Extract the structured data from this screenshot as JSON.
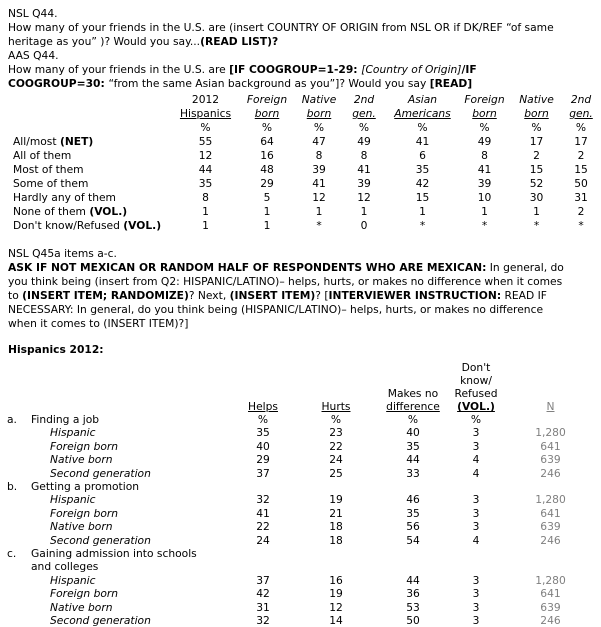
{
  "q44": {
    "lines": [
      [
        {
          "t": "NSL Q44."
        }
      ],
      [
        {
          "t": "How many of your friends in the U.S. are (insert COUNTRY OF ORIGIN from NSL OR if DK/REF “of same"
        }
      ],
      [
        {
          "t": "heritage as you” )? Would you say..."
        },
        {
          "t": "(READ LIST)?",
          "b": true
        }
      ],
      [
        {
          "t": "AAS Q44."
        }
      ],
      [
        {
          "t": "How many of your friends in the U.S. are "
        },
        {
          "t": "[IF COOGROUP=1-29: ",
          "b": true
        },
        {
          "t": "[Country of Origin]",
          "i": true
        },
        {
          "t": "/IF",
          "b": true
        }
      ],
      [
        {
          "t": "COOGROUP=30: ",
          "b": true
        },
        {
          "t": "“from the same Asian background as you”]? Would you say "
        },
        {
          "t": "[READ]",
          "b": true
        }
      ]
    ]
  },
  "table1": {
    "columns": [
      {
        "l1": "2012",
        "l2": "Hispanics"
      },
      {
        "l1": "Foreign",
        "l2": "born"
      },
      {
        "l1": "Native",
        "l2": "born"
      },
      {
        "l1": "2nd",
        "l2": "gen."
      },
      {
        "l1": "Asian",
        "l2": "Americans"
      },
      {
        "l1": "Foreign",
        "l2": "born"
      },
      {
        "l1": "Native",
        "l2": "born"
      },
      {
        "l1": "2nd",
        "l2": "gen."
      }
    ],
    "rows": [
      {
        "label": "",
        "label_bold": "",
        "values": [
          "%",
          "%",
          "%",
          "%",
          "%",
          "%",
          "%",
          "%"
        ]
      },
      {
        "label": "All/most ",
        "label_bold": "(NET)",
        "values": [
          "55",
          "64",
          "47",
          "49",
          "41",
          "49",
          "17",
          "17"
        ]
      },
      {
        "label": "All of them",
        "label_bold": "",
        "values": [
          "12",
          "16",
          "8",
          "8",
          "6",
          "8",
          "2",
          "2"
        ]
      },
      {
        "label": "Most of them",
        "label_bold": "",
        "values": [
          "44",
          "48",
          "39",
          "41",
          "35",
          "41",
          "15",
          "15"
        ]
      },
      {
        "label": "Some of them",
        "label_bold": "",
        "values": [
          "35",
          "29",
          "41",
          "39",
          "42",
          "39",
          "52",
          "50"
        ]
      },
      {
        "label": "Hardly any of them",
        "label_bold": "",
        "values": [
          "8",
          "5",
          "12",
          "12",
          "15",
          "10",
          "30",
          "31"
        ]
      },
      {
        "label": "None of them ",
        "label_bold": "(VOL.)",
        "values": [
          "1",
          "1",
          "1",
          "1",
          "1",
          "1",
          "1",
          "2"
        ]
      },
      {
        "label": "Don't know/Refused ",
        "label_bold": "(VOL.)",
        "values": [
          "1",
          "1",
          "*",
          "0",
          "*",
          "*",
          "*",
          "*"
        ]
      }
    ]
  },
  "q45": {
    "lines": [
      [
        {
          "t": "NSL Q45a items a-c."
        }
      ],
      [
        {
          "t": "ASK IF NOT MEXICAN OR RANDOM HALF OF RESPONDENTS WHO ARE MEXICAN:",
          "b": true
        },
        {
          "t": " In general, do"
        }
      ],
      [
        {
          "t": "you think being (insert from Q2: HISPANIC/LATINO)– helps, hurts, or makes no difference when it comes"
        }
      ],
      [
        {
          "t": "to "
        },
        {
          "t": "(INSERT ITEM; RANDOMIZE)",
          "b": true
        },
        {
          "t": "? Next, "
        },
        {
          "t": "(INSERT ITEM)",
          "b": true
        },
        {
          "t": "? ["
        },
        {
          "t": "INTERVIEWER INSTRUCTION:",
          "b": true
        },
        {
          "t": " READ IF"
        }
      ],
      [
        {
          "t": "NECESSARY: In general, do you think being (HISPANIC/LATINO)– helps, hurts, or makes no difference"
        }
      ],
      [
        {
          "t": "when it comes to (INSERT ITEM)?]"
        }
      ]
    ]
  },
  "section_heading": "Hispanics 2012:",
  "table2": {
    "head": {
      "helps": "Helps",
      "hurts": "Hurts",
      "mnd1": "Makes no",
      "mnd2": "difference",
      "dk1": "Don't",
      "dk2": "know/",
      "dk3": "Refused",
      "dk4": "(VOL.)",
      "n": "N"
    },
    "rows": [
      {
        "marker": "a.",
        "item_label": "Finding a job",
        "item_label2": "",
        "sub_label": "",
        "values": [
          "%",
          "%",
          "%",
          "%"
        ],
        "n": ""
      },
      {
        "marker": "",
        "item_label": "",
        "item_label2": "",
        "sub_label": "Hispanic",
        "values": [
          "35",
          "23",
          "40",
          "3"
        ],
        "n": "1,280"
      },
      {
        "marker": "",
        "item_label": "",
        "item_label2": "",
        "sub_label": "Foreign born",
        "values": [
          "40",
          "22",
          "35",
          "3"
        ],
        "n": "641"
      },
      {
        "marker": "",
        "item_label": "",
        "item_label2": "",
        "sub_label": "Native born",
        "values": [
          "29",
          "24",
          "44",
          "4"
        ],
        "n": "639"
      },
      {
        "marker": "",
        "item_label": "",
        "item_label2": "",
        "sub_label": "Second generation",
        "values": [
          "37",
          "25",
          "33",
          "4"
        ],
        "n": "246"
      },
      {
        "marker": "b.",
        "item_label": "Getting a promotion",
        "item_label2": "",
        "sub_label": "",
        "values": [
          "",
          "",
          "",
          ""
        ],
        "n": ""
      },
      {
        "marker": "",
        "item_label": "",
        "item_label2": "",
        "sub_label": "Hispanic",
        "values": [
          "32",
          "19",
          "46",
          "3"
        ],
        "n": "1,280"
      },
      {
        "marker": "",
        "item_label": "",
        "item_label2": "",
        "sub_label": "Foreign born",
        "values": [
          "41",
          "21",
          "35",
          "3"
        ],
        "n": "641"
      },
      {
        "marker": "",
        "item_label": "",
        "item_label2": "",
        "sub_label": "Native born",
        "values": [
          "22",
          "18",
          "56",
          "3"
        ],
        "n": "639"
      },
      {
        "marker": "",
        "item_label": "",
        "item_label2": "",
        "sub_label": "Second generation",
        "values": [
          "24",
          "18",
          "54",
          "4"
        ],
        "n": "246"
      },
      {
        "marker": "c.",
        "item_label": "Gaining admission into schools",
        "item_label2": "and colleges",
        "sub_label": "",
        "values": [
          "",
          "",
          "",
          ""
        ],
        "n": ""
      },
      {
        "marker": "",
        "item_label": "",
        "item_label2": "",
        "sub_label": "Hispanic",
        "values": [
          "37",
          "16",
          "44",
          "3"
        ],
        "n": "1,280"
      },
      {
        "marker": "",
        "item_label": "",
        "item_label2": "",
        "sub_label": "Foreign born",
        "values": [
          "42",
          "19",
          "36",
          "3"
        ],
        "n": "641"
      },
      {
        "marker": "",
        "item_label": "",
        "item_label2": "",
        "sub_label": "Native born",
        "values": [
          "31",
          "12",
          "53",
          "3"
        ],
        "n": "639"
      },
      {
        "marker": "",
        "item_label": "",
        "item_label2": "",
        "sub_label": "Second generation",
        "values": [
          "32",
          "14",
          "50",
          "3"
        ],
        "n": "246"
      }
    ]
  },
  "colors": {
    "text": "#000000",
    "muted": "#808080",
    "background": "#ffffff"
  }
}
